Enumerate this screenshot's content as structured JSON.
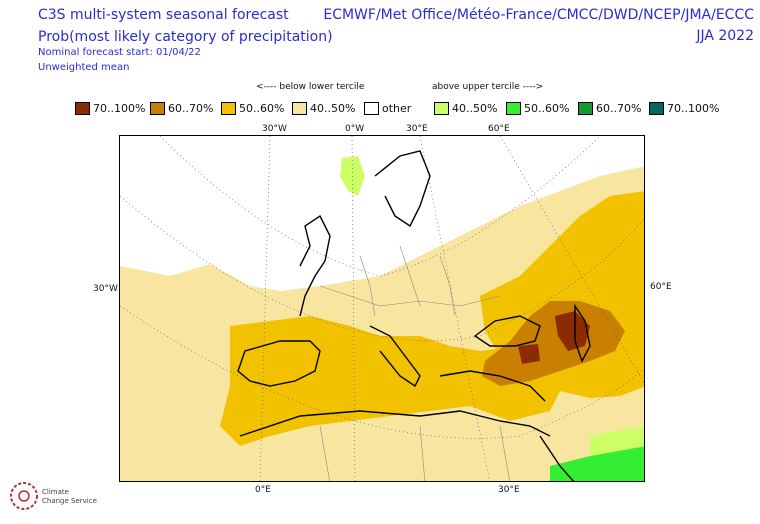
{
  "header": {
    "title_left_1": "C3S multi-system seasonal forecast",
    "title_left_2": "Prob(most likely category of precipitation)",
    "nominal_start": "Nominal forecast start: 01/04/22",
    "weighting": "Unweighted mean",
    "title_right_1": "ECMWF/Met Office/Météo-France/CMCC/DWD/NCEP/JMA/ECCC",
    "title_right_2": "JJA 2022"
  },
  "legend": {
    "below_label": "<---- below lower tercile",
    "above_label": "above upper tercile ---->",
    "items": [
      {
        "label": "70..100%",
        "color": "#8c2a00"
      },
      {
        "label": "60..70%",
        "color": "#c98000"
      },
      {
        "label": "50..60%",
        "color": "#f2c200"
      },
      {
        "label": "40..50%",
        "color": "#f8e6a0"
      },
      {
        "label": "other",
        "color": "#ffffff"
      },
      {
        "label": "40..50%",
        "color": "#ccff66"
      },
      {
        "label": "50..60%",
        "color": "#33ee33"
      },
      {
        "label": "60..70%",
        "color": "#119933"
      },
      {
        "label": "70..100%",
        "color": "#006666"
      }
    ]
  },
  "axes": {
    "top_labels": [
      "30°W",
      "0°W",
      "30°E",
      "60°E"
    ],
    "left_label": "30°W",
    "right_label": "60°E",
    "bottom_labels": [
      "0°E",
      "30°E"
    ]
  },
  "logo": {
    "line1": "Climate",
    "line2": "Change Service"
  }
}
